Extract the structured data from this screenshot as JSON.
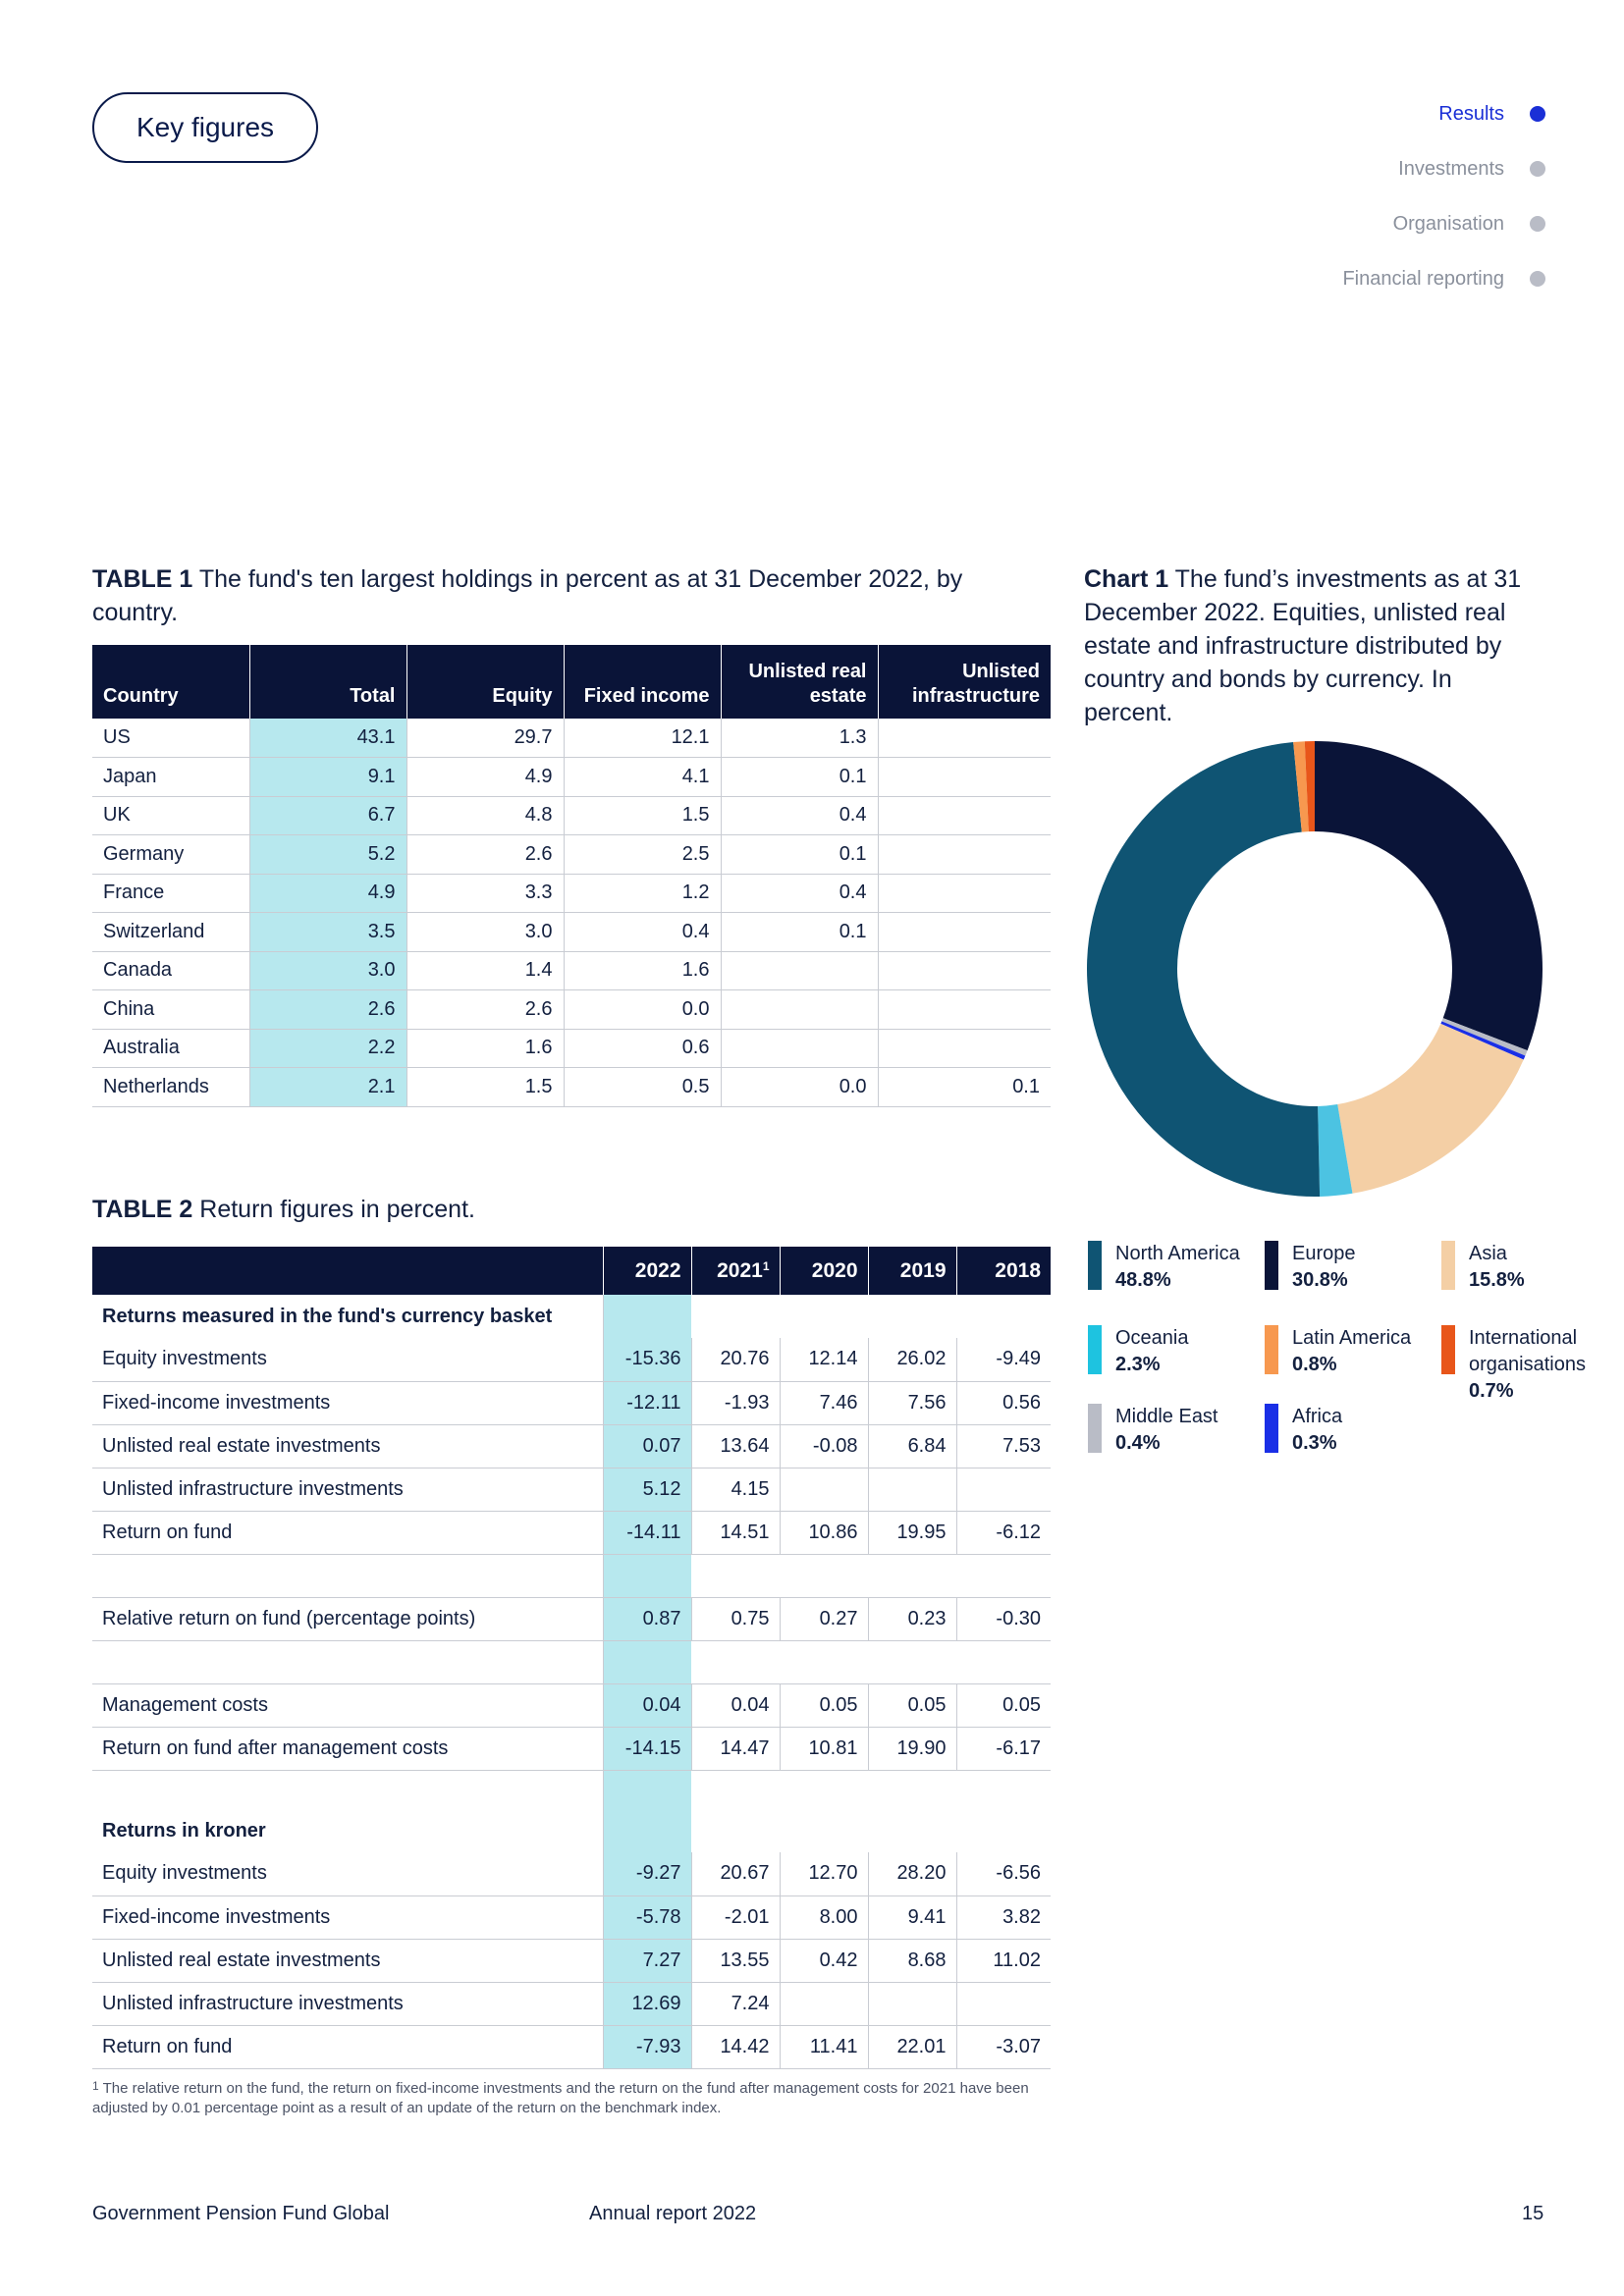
{
  "header": {
    "pill": "Key figures"
  },
  "nav": [
    {
      "label": "Results",
      "active": true
    },
    {
      "label": "Investments",
      "active": false
    },
    {
      "label": "Organisation",
      "active": false
    },
    {
      "label": "Financial reporting",
      "active": false
    }
  ],
  "table1": {
    "caption_bold": "TABLE 1",
    "caption_text": "The fund's ten largest holdings in percent as at 31 December 2022, by country.",
    "headers": [
      "Country",
      "Total",
      "Equity",
      "Fixed income",
      "Unlisted real estate",
      "Unlisted infrastructure"
    ],
    "rows": [
      [
        "US",
        "43.1",
        "29.7",
        "12.1",
        "1.3",
        ""
      ],
      [
        "Japan",
        "9.1",
        "4.9",
        "4.1",
        "0.1",
        ""
      ],
      [
        "UK",
        "6.7",
        "4.8",
        "1.5",
        "0.4",
        ""
      ],
      [
        "Germany",
        "5.2",
        "2.6",
        "2.5",
        "0.1",
        ""
      ],
      [
        "France",
        "4.9",
        "3.3",
        "1.2",
        "0.4",
        ""
      ],
      [
        "Switzerland",
        "3.5",
        "3.0",
        "0.4",
        "0.1",
        ""
      ],
      [
        "Canada",
        "3.0",
        "1.4",
        "1.6",
        "",
        ""
      ],
      [
        "China",
        "2.6",
        "2.6",
        "0.0",
        "",
        ""
      ],
      [
        "Australia",
        "2.2",
        "1.6",
        "0.6",
        "",
        ""
      ],
      [
        "Netherlands",
        "2.1",
        "1.5",
        "0.5",
        "0.0",
        "0.1"
      ]
    ]
  },
  "table2": {
    "caption_bold": "TABLE 2",
    "caption_text": "Return figures in percent.",
    "headers": [
      "",
      "2022",
      "2021",
      "2020",
      "2019",
      "2018"
    ],
    "header_sup": "1",
    "section1_title": "Returns measured in the fund's currency basket",
    "section1_rows": [
      [
        "Equity investments",
        "-15.36",
        "20.76",
        "12.14",
        "26.02",
        "-9.49"
      ],
      [
        "Fixed-income investments",
        "-12.11",
        "-1.93",
        "7.46",
        "7.56",
        "0.56"
      ],
      [
        "Unlisted real estate investments",
        "0.07",
        "13.64",
        "-0.08",
        "6.84",
        "7.53"
      ],
      [
        "Unlisted infrastructure investments",
        "5.12",
        "4.15",
        "",
        "",
        ""
      ],
      [
        "Return on fund",
        "-14.11",
        "14.51",
        "10.86",
        "19.95",
        "-6.12"
      ]
    ],
    "relative_row": [
      "Relative return on fund (percentage points)",
      "0.87",
      "0.75",
      "0.27",
      "0.23",
      "-0.30"
    ],
    "cost_rows": [
      [
        "Management costs",
        "0.04",
        "0.04",
        "0.05",
        "0.05",
        "0.05"
      ],
      [
        "Return on fund after management costs",
        "-14.15",
        "14.47",
        "10.81",
        "19.90",
        "-6.17"
      ]
    ],
    "section2_title": "Returns in kroner",
    "section2_rows": [
      [
        "Equity investments",
        "-9.27",
        "20.67",
        "12.70",
        "28.20",
        "-6.56"
      ],
      [
        "Fixed-income investments",
        "-5.78",
        "-2.01",
        "8.00",
        "9.41",
        "3.82"
      ],
      [
        "Unlisted real estate investments",
        "7.27",
        "13.55",
        "0.42",
        "8.68",
        "11.02"
      ],
      [
        "Unlisted infrastructure investments",
        "12.69",
        "7.24",
        "",
        "",
        ""
      ],
      [
        "Return on fund",
        "-7.93",
        "14.42",
        "11.41",
        "22.01",
        "-3.07"
      ]
    ],
    "footnote_mark": "1",
    "footnote": "The relative return on the fund, the return on fixed-income investments and the return on the fund after management costs for 2021 have been adjusted by 0.01 percentage point as a result of an update of the return on the benchmark index."
  },
  "chart1": {
    "caption_bold": "Chart 1",
    "caption_text": "The fund’s investments as at 31 December 2022. Equities, unlisted real estate and infrastructure distributed by country and bonds by currency. In percent."
  },
  "chart_data": {
    "type": "pie",
    "title": "",
    "donut": true,
    "categories": [
      "Europe",
      "Middle East",
      "Africa",
      "Asia",
      "Oceania",
      "North America",
      "Latin America",
      "International organisations"
    ],
    "values": [
      30.8,
      0.4,
      0.3,
      15.8,
      2.3,
      48.8,
      0.8,
      0.7
    ],
    "colors": [
      "#0a1438",
      "#b9bcc6",
      "#1a2fe6",
      "#f4cfa5",
      "#4cc3e2",
      "#0f5473",
      "#f7984f",
      "#e8561a"
    ],
    "legend": [
      {
        "name": "North America",
        "pct": "48.8%",
        "color": "#0f5473"
      },
      {
        "name": "Europe",
        "pct": "30.8%",
        "color": "#0a1438"
      },
      {
        "name": "Asia",
        "pct": "15.8%",
        "color": "#f4cfa5"
      },
      {
        "name": "Oceania",
        "pct": "2.3%",
        "color": "#1ec3e0"
      },
      {
        "name": "Latin America",
        "pct": "0.8%",
        "color": "#f7984f"
      },
      {
        "name": "International organisations",
        "pct": "0.7%",
        "color": "#e8561a"
      },
      {
        "name": "Middle East",
        "pct": "0.4%",
        "color": "#b9bcc6"
      },
      {
        "name": "Africa",
        "pct": "0.3%",
        "color": "#1a2fe6"
      }
    ]
  },
  "footer": {
    "left": "Government Pension Fund Global",
    "center": "Annual report 2022",
    "page": "15"
  }
}
